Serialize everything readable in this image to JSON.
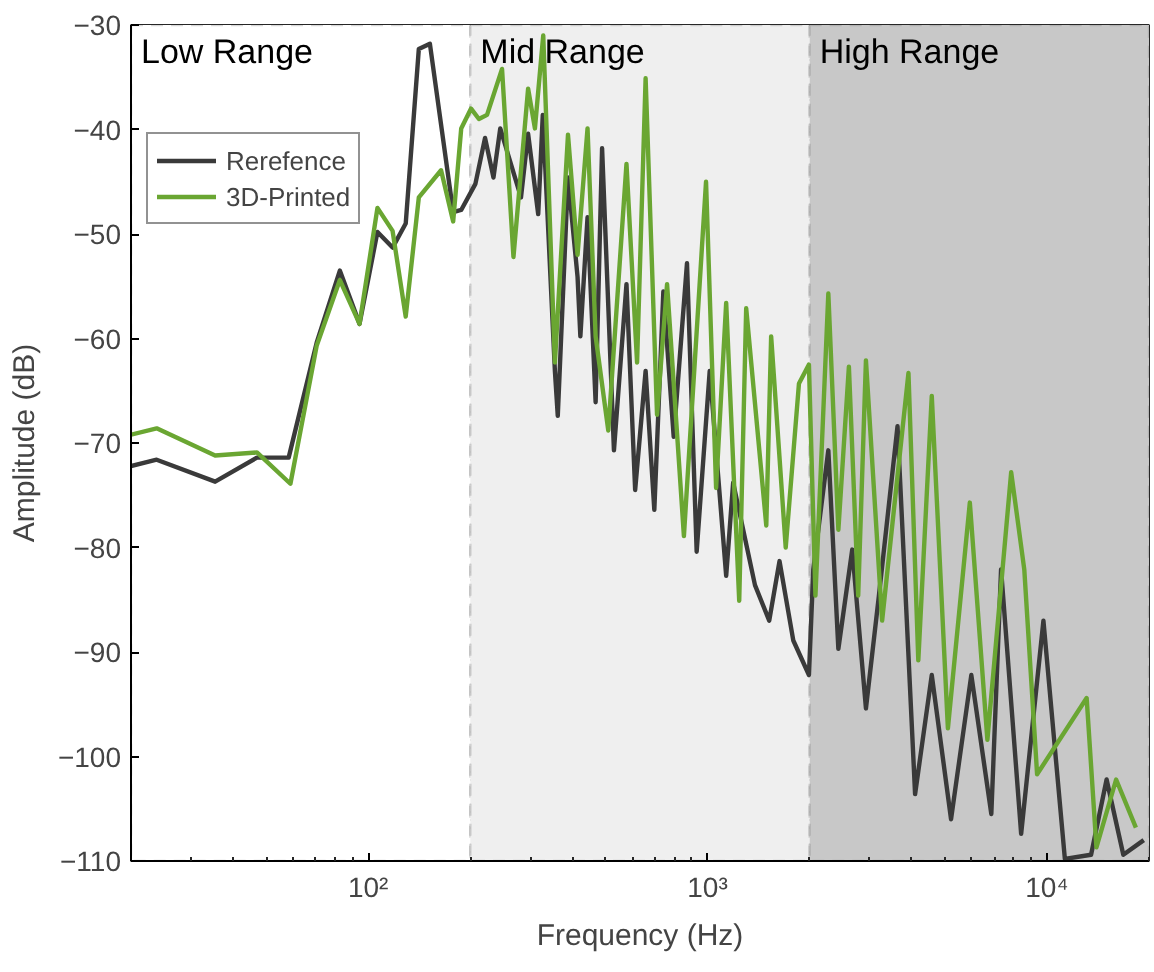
{
  "chart_data": {
    "type": "line",
    "xlabel": "Frequency (Hz)",
    "ylabel": "Amplitude (dB)",
    "log": "x",
    "xlim": [
      20,
      20000
    ],
    "ylim": [
      -110,
      -30
    ],
    "xticks": [
      {
        "value": 100,
        "label": "10²"
      },
      {
        "value": 1000,
        "label": "10³"
      },
      {
        "value": 10000,
        "label": "10⁴"
      }
    ],
    "yticks": [
      -110,
      -100,
      -90,
      -80,
      -70,
      -60,
      -50,
      -40,
      -30
    ],
    "grid": true,
    "legend": "top left",
    "bands": [
      {
        "axis": "x",
        "from": 20,
        "to": 200,
        "label": "Low Range",
        "color": "#ffffff"
      },
      {
        "axis": "x",
        "from": 200,
        "to": 2000,
        "label": "Mid Range",
        "color": "#efefef"
      },
      {
        "axis": "x",
        "from": 2000,
        "to": 20000,
        "label": "High Range",
        "color": "#c8c8c8"
      }
    ],
    "series": [
      {
        "name": "Rerefence",
        "color": "#3a3a3a",
        "x": [
          20,
          23.8,
          35.4,
          47,
          58.3,
          70.5,
          82.5,
          94.3,
          106.5,
          118,
          129,
          141,
          152,
          178,
          188,
          207,
          221,
          234,
          245,
          282,
          296,
          317,
          327,
          355,
          362,
          388,
          414,
          422,
          443,
          468,
          489,
          530,
          577,
          612,
          657,
          697,
          741,
          795,
          870,
          929,
          1015,
          1135,
          1190,
          1380,
          1520,
          1630,
          1790,
          1990,
          2050,
          2270,
          2430,
          2670,
          2930,
          3200,
          3630,
          4090,
          4580,
          5220,
          5990,
          6860,
          7330,
          8400,
          9770,
          11300,
          13500,
          15000,
          16800,
          19300
        ],
        "values": [
          -72.2,
          -71.6,
          -73.7,
          -71.4,
          -71.4,
          -60.4,
          -53.5,
          -58.6,
          -49.8,
          -51.3,
          -49.0,
          -32.3,
          -31.8,
          -47.9,
          -47.7,
          -45.2,
          -40.8,
          -44.6,
          -39.9,
          -46.5,
          -40.4,
          -48.1,
          -38.6,
          -63.1,
          -67.4,
          -44.6,
          -54.1,
          -59.8,
          -48.4,
          -66.1,
          -41.8,
          -70.7,
          -54.8,
          -74.5,
          -63.1,
          -76.4,
          -55.5,
          -69.4,
          -52.8,
          -80.4,
          -63.1,
          -82.7,
          -73.8,
          -83.6,
          -87.0,
          -81.3,
          -88.9,
          -92.2,
          -82.1,
          -70.7,
          -89.7,
          -80.2,
          -95.4,
          -84.6,
          -68.4,
          -103.6,
          -92.2,
          -106.0,
          -92.2,
          -105.5,
          -82.1,
          -107.4,
          -87.0,
          -109.8,
          -109.4,
          -102.2,
          -109.4,
          -108.0
        ]
      },
      {
        "name": "3D-Printed",
        "color": "#6aa632",
        "x": [
          20,
          23.8,
          35.4,
          47,
          59,
          70.5,
          82.5,
          94.3,
          106.5,
          118,
          129,
          141,
          164,
          178,
          188,
          201,
          212,
          224,
          248,
          268,
          296,
          310,
          328,
          355,
          388,
          414,
          443,
          468,
          510,
          577,
          620,
          657,
          710,
          760,
          852,
          990,
          1060,
          1135,
          1240,
          1300,
          1490,
          1540,
          1700,
          1860,
          1990,
          2080,
          2270,
          2430,
          2610,
          2780,
          2930,
          3270,
          3910,
          4180,
          4580,
          5110,
          5930,
          6680,
          7850,
          8580,
          9360,
          13100,
          14000,
          16000,
          18300
        ],
        "values": [
          -69.2,
          -68.6,
          -71.2,
          -70.9,
          -73.9,
          -60.7,
          -54.4,
          -58.6,
          -47.5,
          -49.7,
          -57.9,
          -46.5,
          -43.9,
          -48.8,
          -39.9,
          -38.0,
          -39.0,
          -38.6,
          -34.2,
          -52.2,
          -36.1,
          -39.9,
          -31.0,
          -62.3,
          -40.5,
          -52.0,
          -39.9,
          -59.8,
          -68.8,
          -43.3,
          -62.3,
          -35.1,
          -67.3,
          -54.8,
          -78.9,
          -45.0,
          -74.3,
          -56.6,
          -85.1,
          -57.1,
          -77.9,
          -59.8,
          -80.0,
          -64.3,
          -62.5,
          -84.6,
          -55.7,
          -78.3,
          -62.7,
          -84.6,
          -62.1,
          -87.0,
          -63.3,
          -90.8,
          -65.5,
          -97.3,
          -75.7,
          -98.4,
          -72.8,
          -82.1,
          -101.7,
          -94.4,
          -108.7,
          -102.2,
          -106.8
        ]
      }
    ]
  }
}
